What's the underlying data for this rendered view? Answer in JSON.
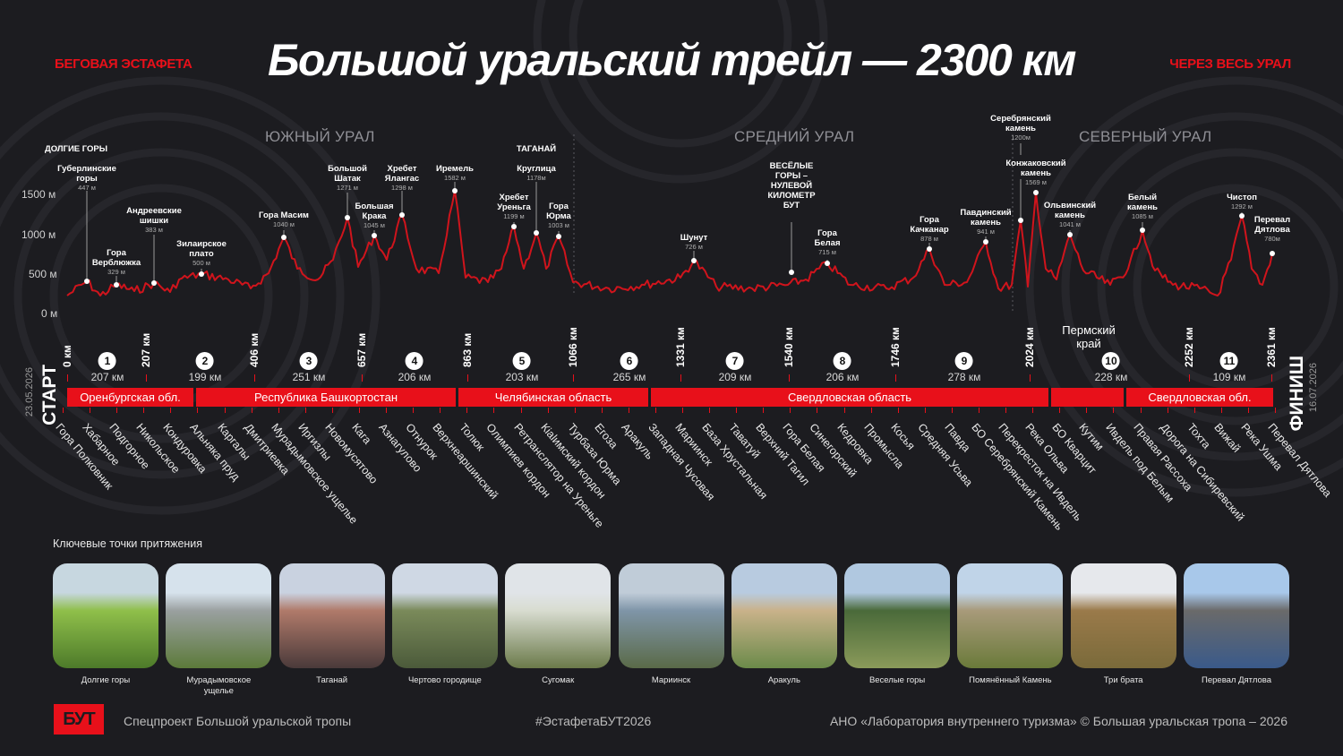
{
  "header": {
    "left_tag": "БЕГОВАЯ ЭСТАФЕТА",
    "title": "Большой уральский трейл — 2300 км",
    "right_tag": "ЧЕРЕЗ ВЕСЬ УРАЛ"
  },
  "regions_top": [
    "ЮЖНЫЙ УРАЛ",
    "СРЕДНИЙ УРАЛ",
    "СЕВЕРНЫЙ УРАЛ"
  ],
  "y_axis": [
    "1500 м",
    "1000 м",
    "500 м",
    "0 м"
  ],
  "group_labels": {
    "dolgie": "ДОЛГИЕ ГОРЫ",
    "taganay": "ТАГАНАЙ"
  },
  "peaks": [
    {
      "name": "Губерлинские\nгоры",
      "alt": "447 м"
    },
    {
      "name": "Гора\nВерблюжка",
      "alt": "329 м"
    },
    {
      "name": "Андреевские\nшишки",
      "alt": "383 м"
    },
    {
      "name": "Зилаирское\nплато",
      "alt": "500 м"
    },
    {
      "name": "Гора Масим",
      "alt": "1040 м"
    },
    {
      "name": "Большой\nШатак",
      "alt": "1271 м"
    },
    {
      "name": "Большая\nКрака",
      "alt": "1045 м"
    },
    {
      "name": "Хребет\nЯлангас",
      "alt": "1298 м"
    },
    {
      "name": "Иремель",
      "alt": "1582 м"
    },
    {
      "name": "Хребет\nУреньга",
      "alt": "1199 м"
    },
    {
      "name": "Круглица",
      "alt": "1178м"
    },
    {
      "name": "Гора\nЮрма",
      "alt": "1003 м"
    },
    {
      "name": "Шунут",
      "alt": "726 м"
    },
    {
      "name": "ВЕСЁЛЫЕ\nГОРЫ –\nНУЛЕВОЙ\nКИЛОМЕТР\nБУТ",
      "alt": ""
    },
    {
      "name": "Гора\nБелая",
      "alt": "715 м"
    },
    {
      "name": "Гора\nКачканар",
      "alt": "878 м"
    },
    {
      "name": "Павдинский\nкамень",
      "alt": "941 м"
    },
    {
      "name": "Серебрянский\nкамень",
      "alt": "1200м"
    },
    {
      "name": "Конжаковский\nкамень",
      "alt": "1569 м"
    },
    {
      "name": "Ольвинский\nкамень",
      "alt": "1041 м"
    },
    {
      "name": "Белый\nкамень",
      "alt": "1085 м"
    },
    {
      "name": "Чистоп",
      "alt": "1292 м"
    },
    {
      "name": "Перевал\nДятлова",
      "alt": "780м"
    }
  ],
  "km_marks": [
    "0 км",
    "207 км",
    "406 км",
    "657 км",
    "863 км",
    "1066 км",
    "1331 км",
    "1540 км",
    "1746 км",
    "2024 км",
    "2252 км",
    "2361 км"
  ],
  "segments": [
    {
      "num": "1",
      "len": "207 км"
    },
    {
      "num": "2",
      "len": "199 км"
    },
    {
      "num": "3",
      "len": "251 км"
    },
    {
      "num": "4",
      "len": "206 км"
    },
    {
      "num": "5",
      "len": "203 км"
    },
    {
      "num": "6",
      "len": "265 км"
    },
    {
      "num": "7",
      "len": "209 км"
    },
    {
      "num": "8",
      "len": "206 км"
    },
    {
      "num": "9",
      "len": "278 км"
    },
    {
      "num": "10",
      "len": "228 км"
    },
    {
      "num": "11",
      "len": "109 км"
    }
  ],
  "perm_label": "Пермский\nкрай",
  "bars": [
    "Оренбургская обл.",
    "Республика Башкортостан",
    "Челябинская область",
    "Свердловская область",
    "",
    "Свердловская обл."
  ],
  "start": {
    "word": "СТАРТ",
    "date": "23.05.2026"
  },
  "finish": {
    "word": "ФИНИШ",
    "date": "16.07.2026"
  },
  "stops": [
    "Гора Полковник",
    "Хабарное",
    "Подгорное",
    "Никольское",
    "Кондуровка",
    "Альняка пруд",
    "Каргалы",
    "Дмитриевка",
    "Мурадымовское ущелье",
    "Иргизлы",
    "Новомусятово",
    "Кага",
    "Азнагулово",
    "Отнурок",
    "Верхнеаршинский",
    "Толюк",
    "Олимпиев кордон",
    "Ретранслятор на Уреньге",
    "Кialимский кордон",
    "Турбаза Юрма",
    "Егоза",
    "Аракуль",
    "Западная Чусовая",
    "Мариинск",
    "База Хрустальная",
    "Таватуй",
    "Верхний Тагил",
    "Гора Белая",
    "Синегорский",
    "Кедровка",
    "Промысла",
    "Косья",
    "Средняя Усьва",
    "Павда",
    "БО Серебрянский Камень",
    "Перекресток на Ивдель",
    "Река Ольва",
    "БО Кварцит",
    "Кутим",
    "Ивдель под Белым",
    "Правая Рассоха",
    "Дорога на Сибиревский",
    "Тохта",
    "Вижай",
    "Река Ушма",
    "Перевал Дятлова"
  ],
  "attractions_title": "Ключевые точки притяжения",
  "attractions": [
    "Долгие горы",
    "Мурадымовское\nущелье",
    "Таганай",
    "Чертово городище",
    "Сугомак",
    "Мариинск",
    "Аракуль",
    "Веселые горы",
    "Помянённый Камень",
    "Три брата",
    "Перевал Дятлова"
  ],
  "footer": {
    "logo": "БУТ",
    "project": "Спецпроект Большой уральской тропы",
    "hashtag": "#ЭстафетаБУТ2026",
    "copyright": "АНО «Лаборатория внутреннего туризма» © Большая уральская тропа – 2026"
  },
  "colors": {
    "accent": "#e8101a",
    "background": "#1c1c20"
  }
}
